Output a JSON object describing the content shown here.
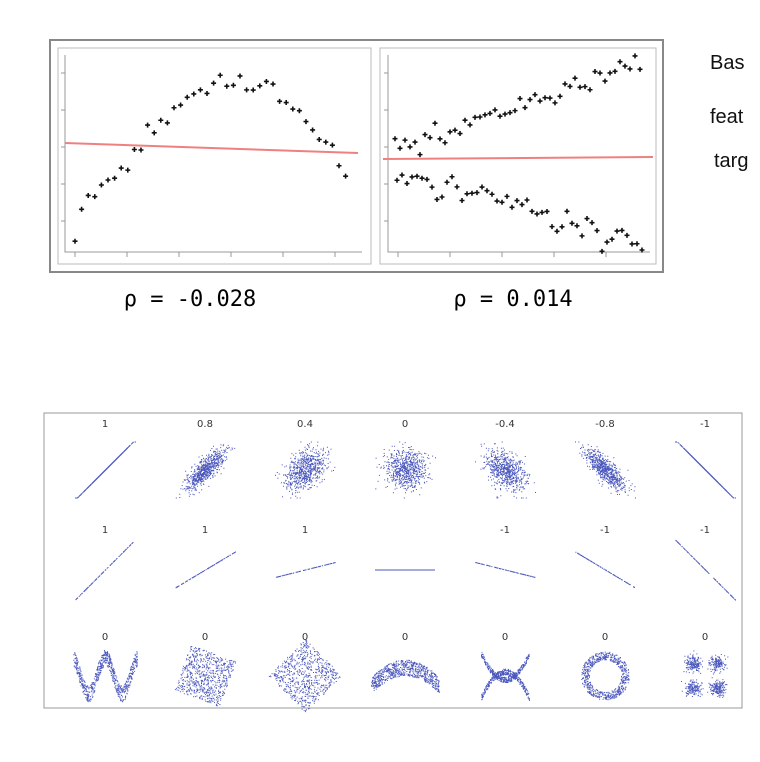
{
  "top_figure": {
    "panels": [
      {
        "label": "ρ = -0.028"
      },
      {
        "label": "ρ = 0.014"
      }
    ]
  },
  "side_text": [
    "Bas",
    "feat",
    "targ"
  ],
  "bottom_figure": {
    "rows": [
      [
        "1",
        "0.8",
        "0.4",
        "0",
        "-0.4",
        "-0.8",
        "-1"
      ],
      [
        "1",
        "1",
        "1",
        null,
        "-1",
        "-1",
        "-1"
      ],
      [
        "0",
        "0",
        "0",
        "0",
        "0",
        "0",
        "0"
      ]
    ]
  }
}
